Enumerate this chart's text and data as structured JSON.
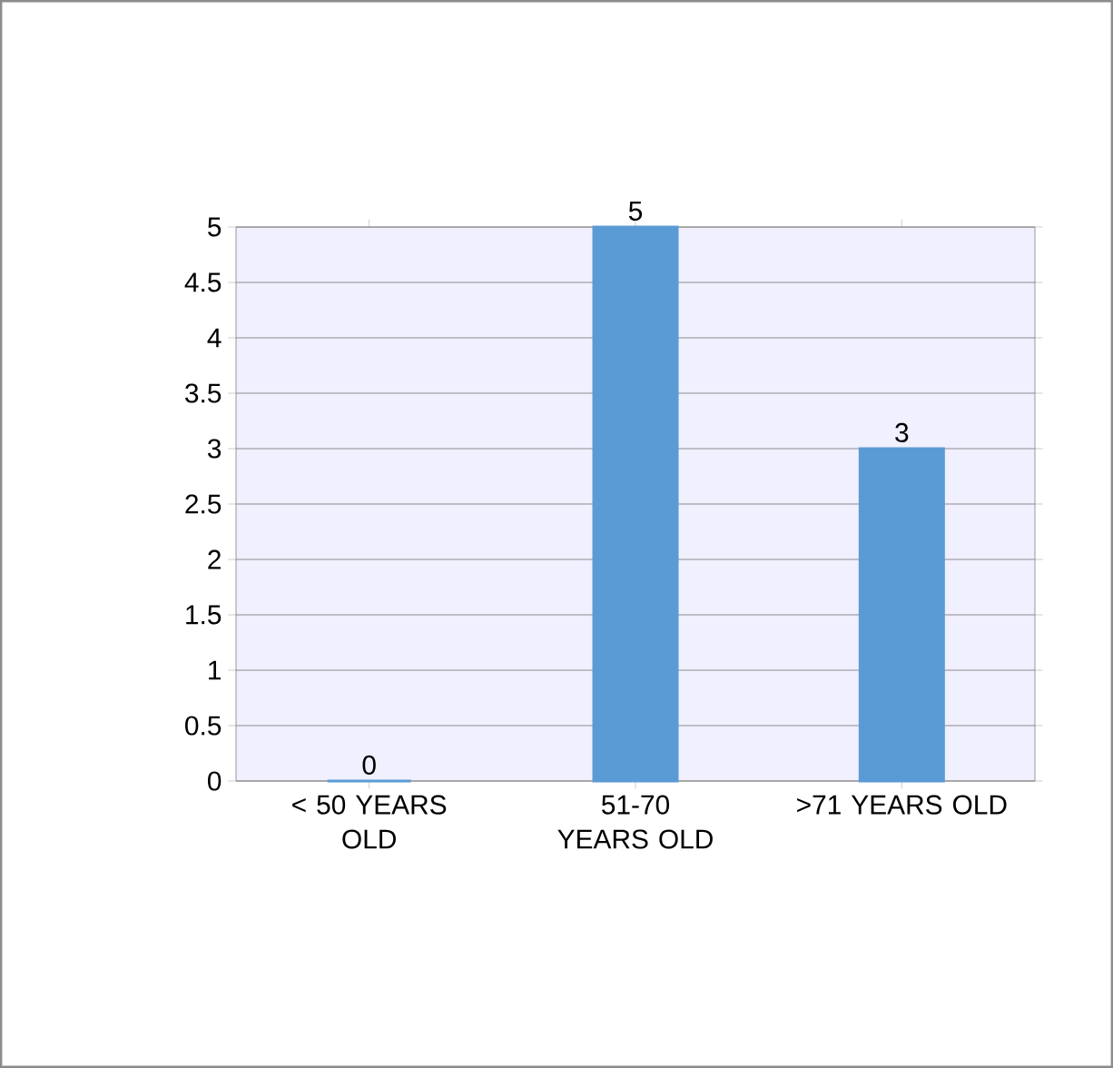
{
  "chart_data": {
    "type": "bar",
    "categories": [
      "< 50 YEARS OLD",
      "51-70 YEARS OLD",
      ">71 YEARS OLD"
    ],
    "values": [
      0,
      5,
      3
    ],
    "color": "#5b9bd5",
    "data_labels": true,
    "ylim": [
      0,
      5
    ],
    "yticks": [
      0,
      0.5,
      1,
      1.5,
      2,
      2.5,
      3,
      3.5,
      4,
      4.5,
      5
    ],
    "grid": "y"
  }
}
